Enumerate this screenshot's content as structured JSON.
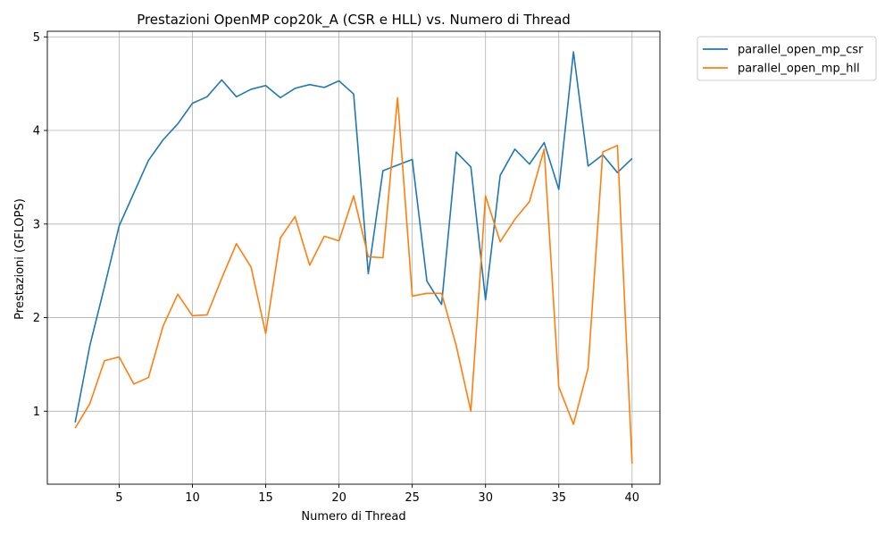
{
  "chart_data": {
    "type": "line",
    "title": "Prestazioni OpenMP cop20k_A (CSR e HLL) vs. Numero di Thread",
    "xlabel": "Numero di Thread",
    "ylabel": "Prestazioni (GFLOPS)",
    "xlim": [
      0.1,
      41.9
    ],
    "ylim": [
      0.22,
      5.06
    ],
    "xticks": [
      5,
      10,
      15,
      20,
      25,
      30,
      35,
      40
    ],
    "yticks": [
      1,
      2,
      3,
      4,
      5
    ],
    "grid": true,
    "legend_position": "outside-top-right",
    "x": [
      2,
      3,
      4,
      5,
      6,
      7,
      8,
      9,
      10,
      11,
      12,
      13,
      14,
      15,
      16,
      17,
      18,
      19,
      20,
      21,
      22,
      23,
      24,
      25,
      26,
      27,
      28,
      29,
      30,
      31,
      32,
      33,
      34,
      35,
      36,
      37,
      38,
      39,
      40
    ],
    "series": [
      {
        "name": "parallel_open_mp_csr",
        "color": "#1f77b4",
        "values": [
          0.88,
          1.7,
          2.33,
          2.98,
          3.33,
          3.68,
          3.9,
          4.07,
          4.29,
          4.36,
          4.54,
          4.36,
          4.44,
          4.48,
          4.35,
          4.45,
          4.49,
          4.46,
          4.53,
          4.39,
          2.47,
          3.57,
          3.63,
          3.69,
          2.39,
          2.14,
          3.77,
          3.61,
          2.19,
          3.52,
          3.8,
          3.64,
          3.87,
          3.37,
          4.84,
          3.62,
          3.74,
          3.55,
          3.7
        ]
      },
      {
        "name": "parallel_open_mp_hll",
        "color": "#ff7f0e",
        "values": [
          0.82,
          1.08,
          1.54,
          1.58,
          1.29,
          1.36,
          1.91,
          2.25,
          2.02,
          2.03,
          2.42,
          2.79,
          2.54,
          1.83,
          2.85,
          3.08,
          2.56,
          2.87,
          2.82,
          3.3,
          2.65,
          2.64,
          4.35,
          2.23,
          2.26,
          2.26,
          1.7,
          1.0,
          3.3,
          2.81,
          3.05,
          3.24,
          3.8,
          1.26,
          0.86,
          1.46,
          3.77,
          3.84,
          0.44
        ]
      }
    ]
  }
}
